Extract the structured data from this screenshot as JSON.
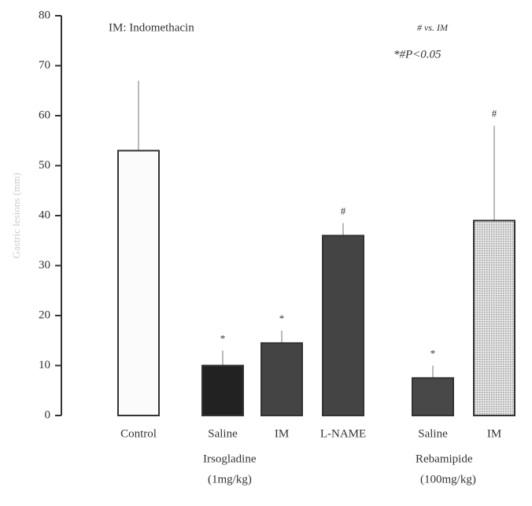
{
  "chart_data": {
    "type": "bar",
    "y_label": "Gastric lesions (mm)",
    "annotations": [
      "IM: Indomethacin",
      "# vs. IM",
      "*#P<0.05"
    ],
    "categories": [
      "Control",
      "Saline",
      "IM",
      "L-NAME",
      "Saline",
      "IM"
    ],
    "values": [
      53,
      10,
      14.5,
      36,
      7.5,
      39
    ],
    "errors": [
      14,
      3,
      2.5,
      2.5,
      2.5,
      19
    ],
    "markers": [
      null,
      "*",
      "*",
      "#",
      "*",
      "#"
    ],
    "colors": [
      "#fbfbfb",
      "#222222",
      "#444444",
      "#444444",
      "#484848",
      "#d2d2d2"
    ],
    "groups": [
      {
        "lines": [
          "Irsogladine",
          "(1mg/kg)"
        ]
      },
      {
        "lines": [
          "Rebamipide",
          "(100mg/kg)"
        ]
      }
    ],
    "ylim": [
      0,
      80
    ],
    "yticks": [
      0,
      10,
      20,
      30,
      40,
      50,
      60,
      70,
      80
    ]
  }
}
